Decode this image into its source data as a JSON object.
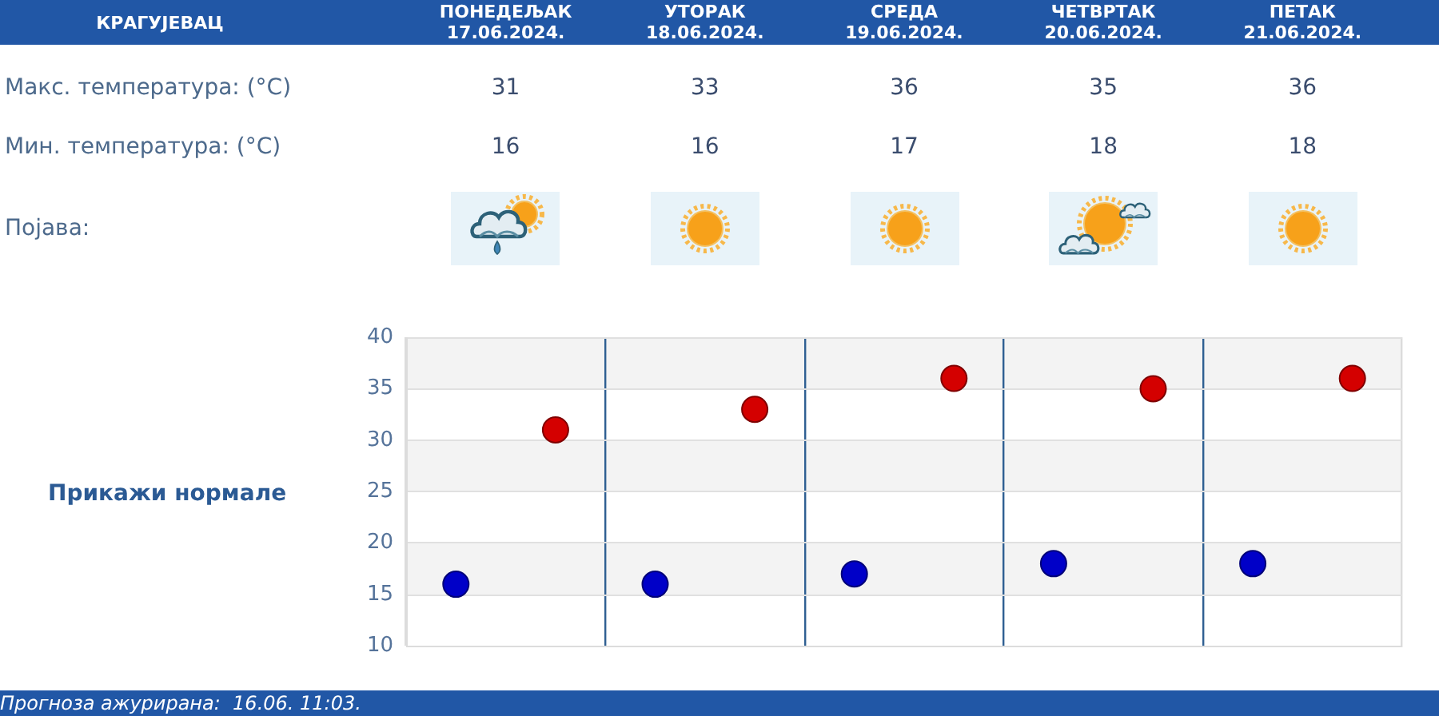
{
  "chart_data": {
    "type": "scatter",
    "title": "КРАГУЈЕВАЦ",
    "categories": [
      null,
      null,
      null,
      null,
      null
    ],
    "series": [
      {
        "color": "#d40000",
        "values": [
          31,
          33,
          36,
          35,
          36
        ]
      },
      {
        "color": "#0000c8",
        "values": [
          16,
          16,
          17,
          18,
          18
        ]
      }
    ],
    "ylim": [
      10,
      40
    ],
    "yticks": [
      10,
      15,
      20,
      25,
      30,
      35,
      40
    ],
    "tick_labels": "y",
    "grid": true,
    "marker": "circle",
    "data_labels": true,
    "annotations": [
      "ПОНЕДЕЉАК\n17.06.2024.",
      "УТОРАК\n18.06.2024.",
      "СРЕДА\n19.06.2024.",
      "ЧЕТВРТАК\n20.06.2024.",
      "ПЕТАК\n21.06.2024.",
      "Макс. температура: (°C)",
      "Мин. температура: (°C)",
      "Појава:",
      "Прикажи нормале",
      "Прогноза ажурирана:  16.06. 11:03."
    ]
  }
}
